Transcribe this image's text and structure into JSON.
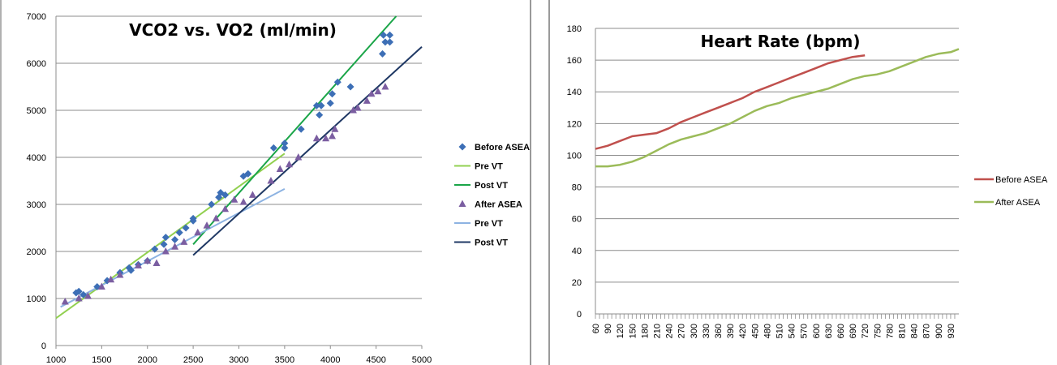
{
  "chart_data": [
    {
      "type": "scatter",
      "title": "VCO2 vs. VO2 (ml/min)",
      "xlabel": "",
      "ylabel": "",
      "xlim": [
        1000,
        5000
      ],
      "ylim": [
        0,
        7000
      ],
      "xticks": [
        1000,
        1500,
        2000,
        2500,
        3000,
        3500,
        4000,
        4500,
        5000
      ],
      "yticks": [
        0,
        1000,
        2000,
        3000,
        4000,
        5000,
        6000,
        7000
      ],
      "grid": "horizontal",
      "legend_position": "right",
      "colors": {
        "before": "#3d6fb6",
        "pre_vt_1": "#92d050",
        "post_vt_1": "#1aa548",
        "after": "#7b5ea1",
        "pre_vt_2": "#8db3e2",
        "post_vt_2": "#1f3864"
      },
      "series": [
        {
          "name": "Before ASEA",
          "kind": "scatter",
          "marker": "diamond",
          "points": [
            [
              1220,
              1120
            ],
            [
              1250,
              1150
            ],
            [
              1300,
              1080
            ],
            [
              1450,
              1250
            ],
            [
              1560,
              1380
            ],
            [
              1700,
              1550
            ],
            [
              1800,
              1650
            ],
            [
              1820,
              1600
            ],
            [
              1900,
              1720
            ],
            [
              2000,
              1800
            ],
            [
              2080,
              2050
            ],
            [
              2180,
              2150
            ],
            [
              2200,
              2300
            ],
            [
              2300,
              2250
            ],
            [
              2350,
              2400
            ],
            [
              2420,
              2500
            ],
            [
              2500,
              2700
            ],
            [
              2500,
              2650
            ],
            [
              2700,
              3000
            ],
            [
              2780,
              3150
            ],
            [
              2800,
              3250
            ],
            [
              2850,
              3200
            ],
            [
              3050,
              3600
            ],
            [
              3100,
              3650
            ],
            [
              3380,
              4200
            ],
            [
              3500,
              4300
            ],
            [
              3500,
              4200
            ],
            [
              3680,
              4600
            ],
            [
              3850,
              5100
            ],
            [
              3880,
              4900
            ],
            [
              3900,
              5100
            ],
            [
              4000,
              5150
            ],
            [
              4020,
              5350
            ],
            [
              4080,
              5600
            ],
            [
              4220,
              5500
            ],
            [
              4570,
              6200
            ],
            [
              4580,
              6600
            ],
            [
              4600,
              6450
            ],
            [
              4650,
              6450
            ],
            [
              4650,
              6600
            ]
          ]
        },
        {
          "name": "Pre VT",
          "kind": "line",
          "points": [
            [
              1000,
              580
            ],
            [
              3500,
              4080
            ]
          ]
        },
        {
          "name": "Post VT",
          "kind": "line",
          "points": [
            [
              2500,
              2150
            ],
            [
              4720,
              7000
            ]
          ]
        },
        {
          "name": "After ASEA",
          "kind": "scatter",
          "marker": "triangle",
          "points": [
            [
              1100,
              930
            ],
            [
              1250,
              1000
            ],
            [
              1350,
              1050
            ],
            [
              1500,
              1250
            ],
            [
              1600,
              1400
            ],
            [
              1700,
              1500
            ],
            [
              1900,
              1700
            ],
            [
              2000,
              1800
            ],
            [
              2100,
              1750
            ],
            [
              2200,
              2000
            ],
            [
              2300,
              2100
            ],
            [
              2400,
              2200
            ],
            [
              2550,
              2400
            ],
            [
              2650,
              2550
            ],
            [
              2750,
              2700
            ],
            [
              2850,
              2900
            ],
            [
              2950,
              3100
            ],
            [
              3050,
              3050
            ],
            [
              3150,
              3200
            ],
            [
              3350,
              3500
            ],
            [
              3450,
              3750
            ],
            [
              3550,
              3850
            ],
            [
              3650,
              4000
            ],
            [
              3850,
              4400
            ],
            [
              3950,
              4400
            ],
            [
              4020,
              4450
            ],
            [
              4050,
              4600
            ],
            [
              4250,
              5000
            ],
            [
              4300,
              5050
            ],
            [
              4400,
              5200
            ],
            [
              4450,
              5350
            ],
            [
              4520,
              5400
            ],
            [
              4600,
              5500
            ]
          ]
        },
        {
          "name": "Pre VT",
          "kind": "line",
          "points": [
            [
              1050,
              820
            ],
            [
              3500,
              3330
            ]
          ]
        },
        {
          "name": "Post VT",
          "kind": "line",
          "points": [
            [
              2500,
              1920
            ],
            [
              5000,
              6350
            ]
          ]
        }
      ]
    },
    {
      "type": "line",
      "title": "Heart Rate (bpm)",
      "xlabel": "",
      "ylabel": "",
      "xlim": [
        60,
        950
      ],
      "ylim": [
        0,
        180
      ],
      "yticks": [
        0,
        20,
        40,
        60,
        80,
        100,
        120,
        140,
        160,
        180
      ],
      "categories": [
        "60",
        "90",
        "120",
        "150",
        "180",
        "210",
        "240",
        "270",
        "300",
        "330",
        "360",
        "390",
        "420",
        "450",
        "480",
        "510",
        "540",
        "570",
        "600",
        "630",
        "660",
        "690",
        "720",
        "750",
        "780",
        "810",
        "840",
        "870",
        "900",
        "930"
      ],
      "grid": "horizontal",
      "legend_position": "right",
      "colors": {
        "before": "#c0504d",
        "after": "#9bbb59"
      },
      "series": [
        {
          "name": "Before ASEA",
          "x": [
            60,
            90,
            120,
            150,
            180,
            210,
            240,
            270,
            300,
            330,
            360,
            390,
            420,
            450,
            480,
            510,
            540,
            570,
            600,
            630,
            660,
            690,
            720
          ],
          "values": [
            104,
            106,
            109,
            112,
            113,
            114,
            117,
            121,
            124,
            127,
            130,
            133,
            136,
            140,
            143,
            146,
            149,
            152,
            155,
            158,
            160,
            162,
            163
          ]
        },
        {
          "name": "After ASEA",
          "x": [
            60,
            90,
            120,
            150,
            180,
            210,
            240,
            270,
            300,
            330,
            360,
            390,
            420,
            450,
            480,
            510,
            540,
            570,
            600,
            630,
            660,
            690,
            720,
            750,
            780,
            810,
            840,
            870,
            900,
            930,
            950
          ],
          "values": [
            93,
            93,
            94,
            96,
            99,
            103,
            107,
            110,
            112,
            114,
            117,
            120,
            124,
            128,
            131,
            133,
            136,
            138,
            140,
            142,
            145,
            148,
            150,
            151,
            153,
            156,
            159,
            162,
            164,
            165,
            167
          ]
        }
      ]
    }
  ]
}
